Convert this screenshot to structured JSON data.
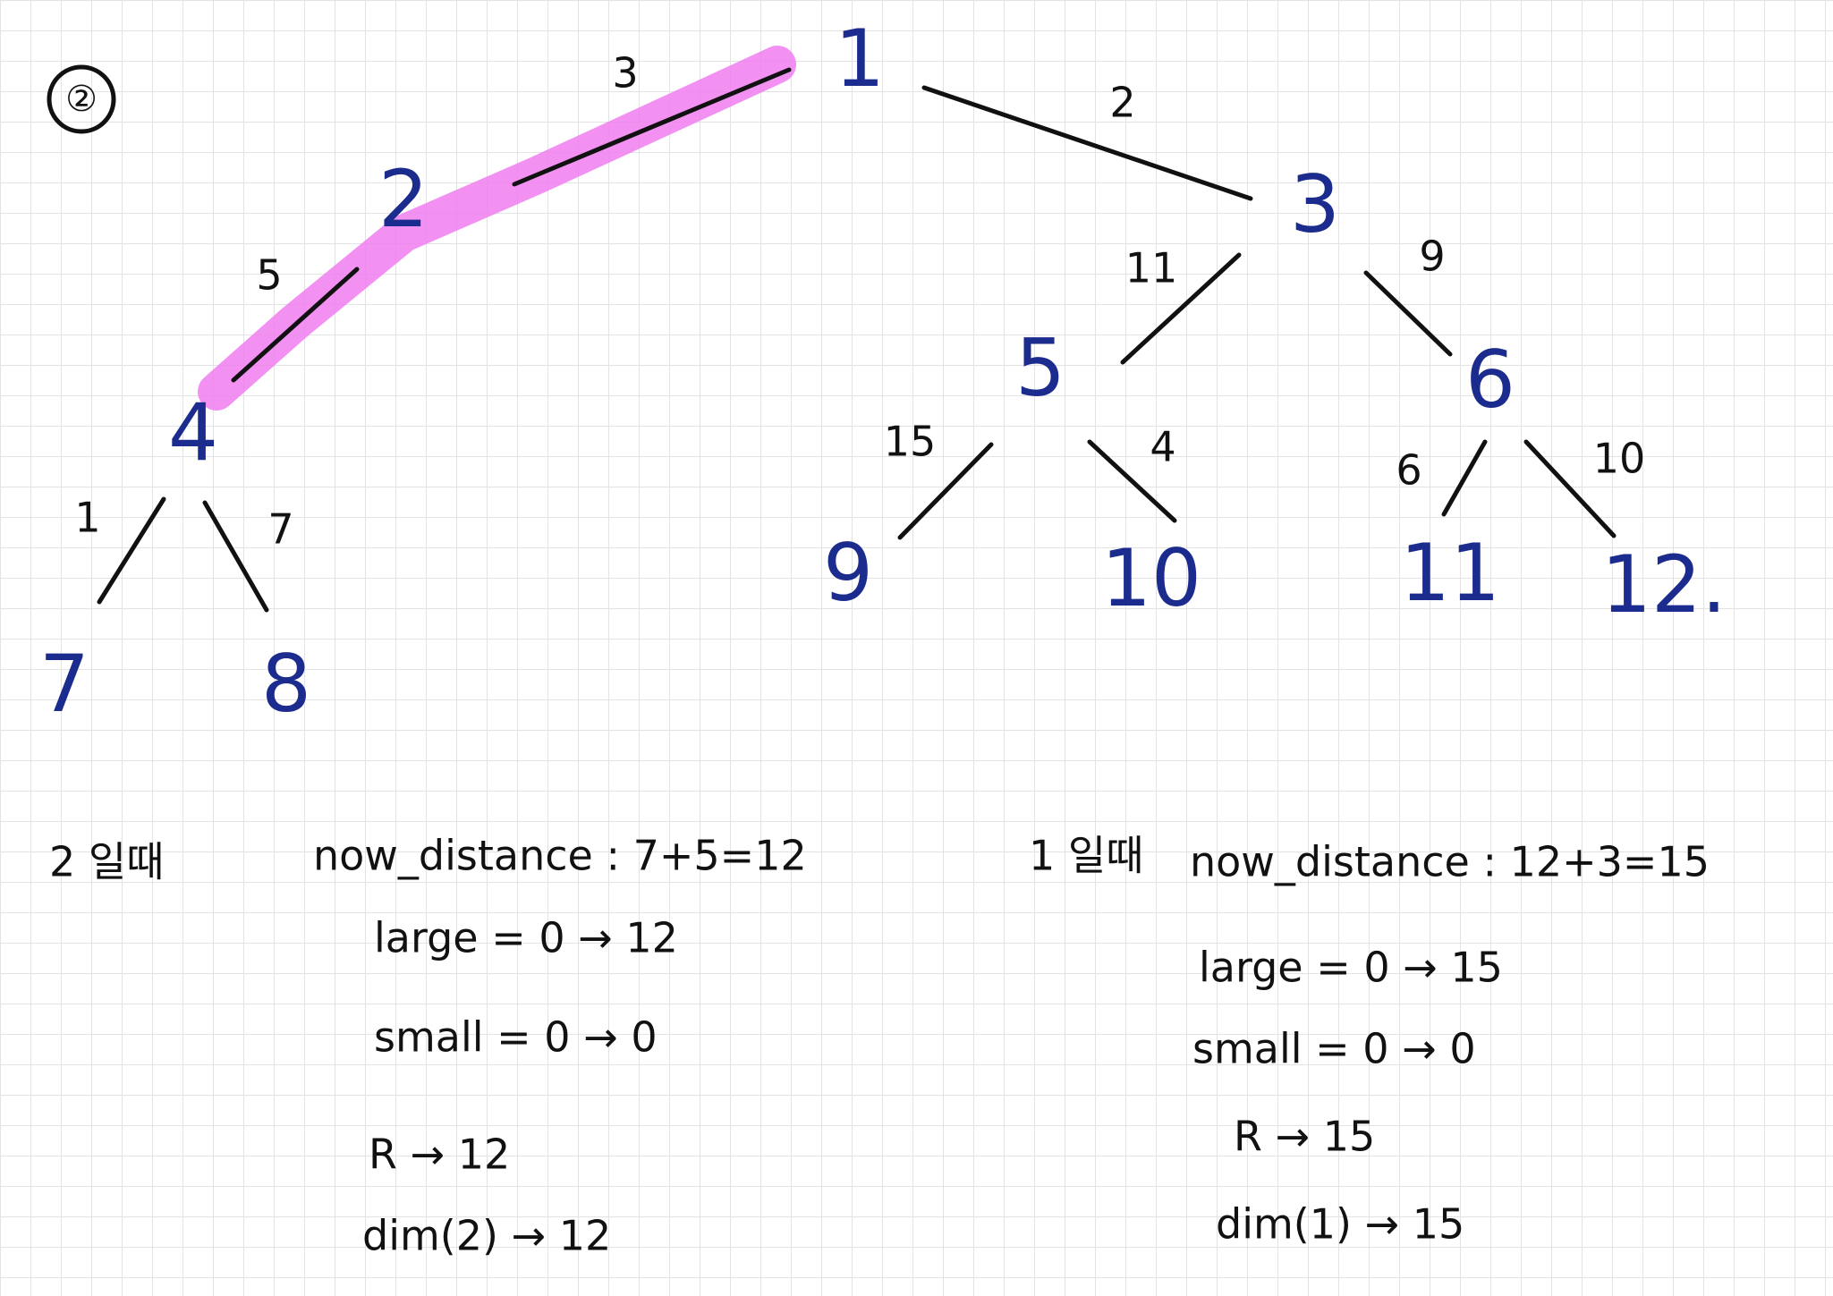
{
  "marker": "②",
  "nodes": [
    {
      "label": "1"
    },
    {
      "label": "2"
    },
    {
      "label": "3"
    },
    {
      "label": "4"
    },
    {
      "label": "5"
    },
    {
      "label": "6"
    },
    {
      "label": "7"
    },
    {
      "label": "8"
    },
    {
      "label": "9"
    },
    {
      "label": "10"
    },
    {
      "label": "11"
    },
    {
      "label": "12."
    }
  ],
  "edges": [
    {
      "weight": "3"
    },
    {
      "weight": "2"
    },
    {
      "weight": "5"
    },
    {
      "weight": "11"
    },
    {
      "weight": "9"
    },
    {
      "weight": "1"
    },
    {
      "weight": "7"
    },
    {
      "weight": "15"
    },
    {
      "weight": "4"
    },
    {
      "weight": "6"
    },
    {
      "weight": "10"
    }
  ],
  "notes": {
    "left": [
      "2 일때",
      "now_distance : 7+5=12",
      "large = 0 → 12",
      "small = 0 → 0",
      "R → 12",
      "dim(2) → 12"
    ],
    "right": [
      "1 일때",
      "now_distance : 12+3=15",
      "large = 0 → 15",
      "small = 0 → 0",
      "R → 15",
      "dim(1) → 15"
    ]
  }
}
